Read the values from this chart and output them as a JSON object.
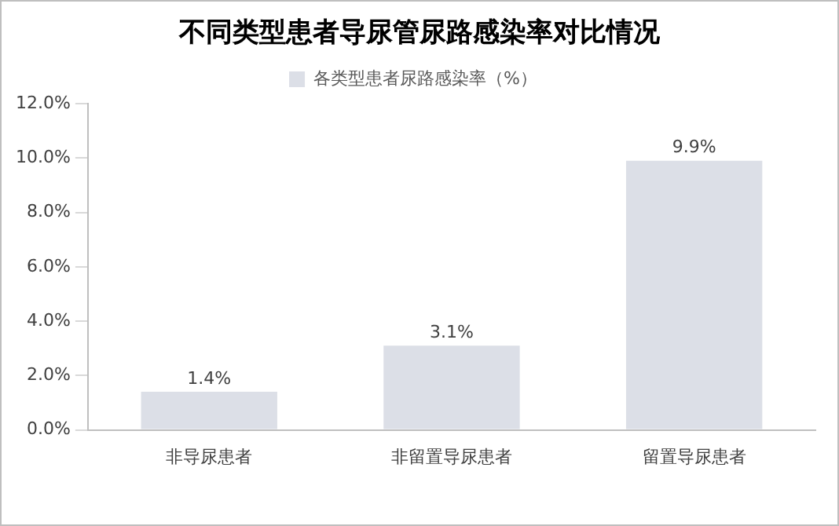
{
  "chart_data": {
    "type": "bar",
    "title": "不同类型患者导尿管尿路感染率对比情况",
    "categories": [
      "非导尿患者",
      "非留置导尿患者",
      "留置导尿患者"
    ],
    "series": [
      {
        "name": "各类型患者尿路感染率（%）",
        "color": "#dcdfe7",
        "values": [
          1.4,
          3.1,
          9.9
        ],
        "value_labels": [
          "1.4%",
          "3.1%",
          "9.9%"
        ]
      }
    ],
    "ylim": [
      0,
      12
    ],
    "yticks": [
      {
        "value": 0,
        "label": "0.0%"
      },
      {
        "value": 2,
        "label": "2.0%"
      },
      {
        "value": 4,
        "label": "4.0%"
      },
      {
        "value": 6,
        "label": "6.0%"
      },
      {
        "value": 8,
        "label": "8.0%"
      },
      {
        "value": 10,
        "label": "10.0%"
      },
      {
        "value": 12,
        "label": "12.0%"
      }
    ],
    "grid": false,
    "legend": "top"
  }
}
